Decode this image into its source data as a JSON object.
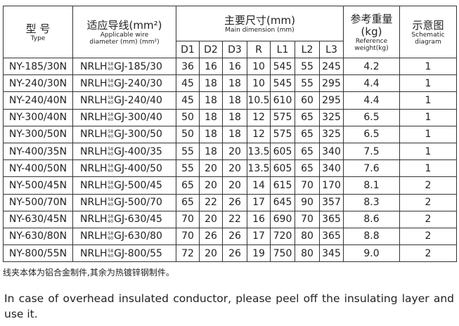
{
  "header": {
    "type": "型 号",
    "type_en": "Type",
    "wire": "适应导线(mm²)",
    "wire_en": [
      "Applicable wire",
      "diameter (mm) (mm²)"
    ],
    "dims": "主要尺寸(mm)",
    "dims_en": "Main dimension (mm)",
    "weight": [
      "参考重量",
      "(kg)"
    ],
    "weight_en": [
      "Reference",
      "weight(kg)"
    ],
    "diagram": "示意图",
    "diagram_en": [
      "Schematic",
      "diagram"
    ],
    "dim_cols": [
      "D1",
      "D2",
      "D3",
      "R",
      "L1",
      "L2",
      "L3"
    ]
  },
  "table": {
    "rows": [
      {
        "type": "NY-185/30N",
        "wire": [
          "NRLH",
          "58",
          "60",
          "GJ-185/30"
        ],
        "dims": [
          36,
          16,
          16,
          10,
          545,
          55,
          245
        ],
        "weight": "4.2",
        "diagram": "1"
      },
      {
        "type": "NY-240/30N",
        "wire": [
          "NRLH",
          "58",
          "60",
          "GJ-240/30"
        ],
        "dims": [
          45,
          18,
          18,
          10,
          545,
          55,
          295
        ],
        "weight": "4.4",
        "diagram": "1"
      },
      {
        "type": "NY-240/40N",
        "wire": [
          "NRLH",
          "58",
          "60",
          "GJ-240/40"
        ],
        "dims": [
          45,
          18,
          18,
          10.5,
          610,
          60,
          295
        ],
        "weight": "4.4",
        "diagram": "1"
      },
      {
        "type": "NY-300/40N",
        "wire": [
          "NRLH",
          "58",
          "60",
          "GJ-300/40"
        ],
        "dims": [
          50,
          18,
          18,
          12,
          575,
          65,
          325
        ],
        "weight": "6.5",
        "diagram": "1"
      },
      {
        "type": "NY-300/50N",
        "wire": [
          "NRLH",
          "58",
          "60",
          "GJ-300/50"
        ],
        "dims": [
          50,
          18,
          18,
          12,
          575,
          65,
          325
        ],
        "weight": "6.5",
        "diagram": "1"
      },
      {
        "type": "NY-400/35N",
        "wire": [
          "NRLH",
          "58",
          "60",
          "GJ-400/35"
        ],
        "dims": [
          55,
          18,
          20,
          13.5,
          605,
          65,
          340
        ],
        "weight": "7.5",
        "diagram": "1"
      },
      {
        "type": "NY-400/50N",
        "wire": [
          "NRLH",
          "58",
          "60",
          "GJ-400/50"
        ],
        "dims": [
          55,
          20,
          20,
          13.5,
          605,
          65,
          340
        ],
        "weight": "7.6",
        "diagram": "1"
      },
      {
        "type": "NY-500/45N",
        "wire": [
          "NRLH",
          "58",
          "60",
          "GJ-500/45"
        ],
        "dims": [
          65,
          20,
          20,
          14,
          615,
          70,
          170
        ],
        "weight": "8.1",
        "diagram": "2"
      },
      {
        "type": "NY-500/70N",
        "wire": [
          "NRLH",
          "58",
          "60",
          "GJ-500/70"
        ],
        "dims": [
          65,
          22,
          26,
          17,
          645,
          90,
          357
        ],
        "weight": "8.3",
        "diagram": "2"
      },
      {
        "type": "NY-630/45N",
        "wire": [
          "NRLH",
          "58",
          "60",
          "GJ-630/45"
        ],
        "dims": [
          70,
          20,
          22,
          16,
          690,
          70,
          365
        ],
        "weight": "8.6",
        "diagram": "2"
      },
      {
        "type": "NY-630/80N",
        "wire": [
          "NRLH",
          "58",
          "60",
          "GJ-630/80"
        ],
        "dims": [
          70,
          26,
          26,
          17,
          720,
          80,
          365
        ],
        "weight": "8.8",
        "diagram": "2"
      },
      {
        "type": "NY-800/55N",
        "wire": [
          "NRLH",
          "58",
          "60",
          "GJ-800/55"
        ],
        "dims": [
          72,
          20,
          26,
          19,
          750,
          80,
          345
        ],
        "weight": "9.0",
        "diagram": "2"
      }
    ]
  },
  "footnote": "线夹本体为铝合金制件,其余为热镀锌钢制件。",
  "paragraph": "In case of overhead insulated conductor, please peel off the insulating layer and use it."
}
